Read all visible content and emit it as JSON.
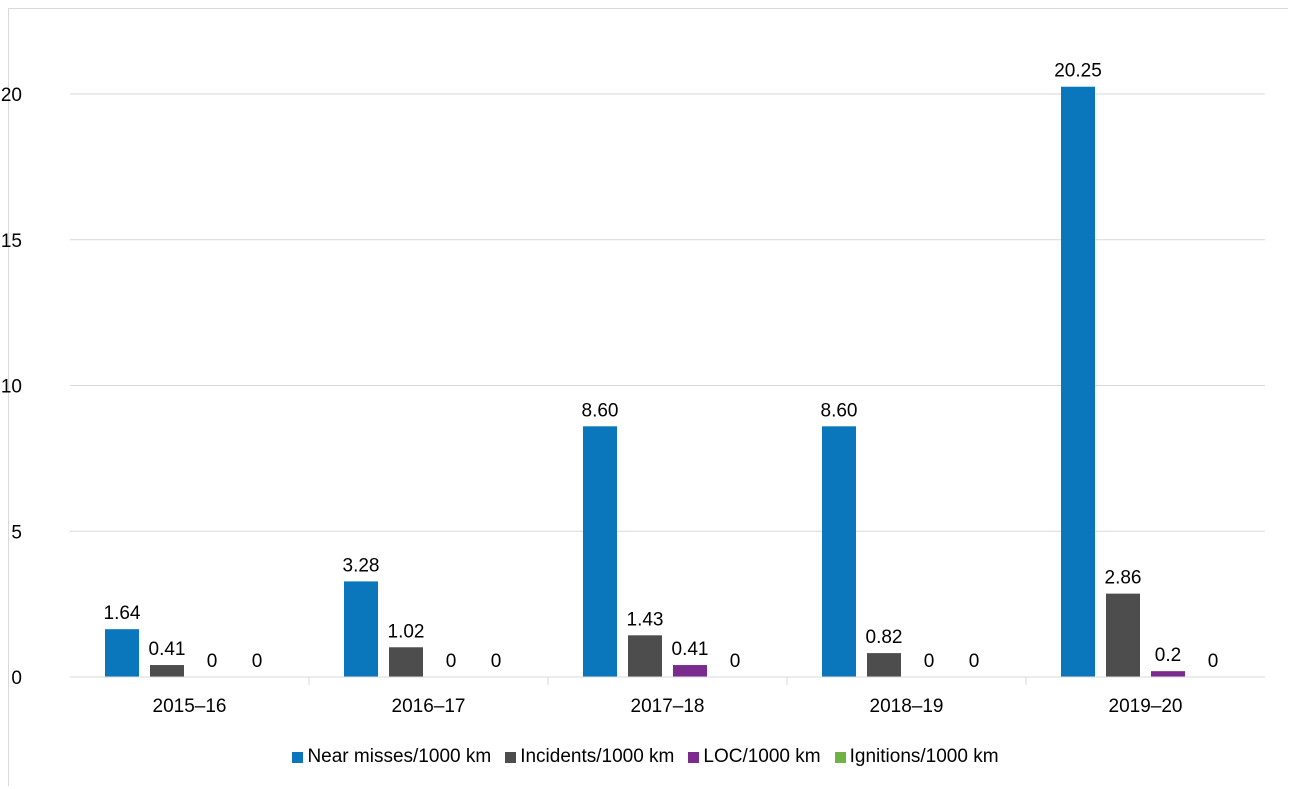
{
  "chart_data": {
    "type": "bar",
    "categories": [
      "2015–16",
      "2016–17",
      "2017–18",
      "2018–19",
      "2019–20"
    ],
    "series": [
      {
        "name": "Near misses/1000 km",
        "color": "#0a77bd",
        "values": [
          1.64,
          3.28,
          8.6,
          8.6,
          20.25
        ],
        "labels": [
          "1.64",
          "3.28",
          "8.60",
          "8.60",
          "20.25"
        ]
      },
      {
        "name": "Incidents/1000 km",
        "color": "#4d4d4d",
        "values": [
          0.41,
          1.02,
          1.43,
          0.82,
          2.86
        ],
        "labels": [
          "0.41",
          "1.02",
          "1.43",
          "0.82",
          "2.86"
        ]
      },
      {
        "name": "LOC/1000 km",
        "color": "#7b2a8e",
        "values": [
          0,
          0,
          0.41,
          0,
          0.2
        ],
        "labels": [
          "0",
          "0",
          "0.41",
          "0",
          "0.2"
        ]
      },
      {
        "name": "Ignitions/1000 km",
        "color": "#70b344",
        "values": [
          0,
          0,
          0,
          0,
          0
        ],
        "labels": [
          "0",
          "0",
          "0",
          "0",
          "0"
        ]
      }
    ],
    "ylim": [
      0,
      20
    ],
    "yticks": [
      0,
      5,
      10,
      15,
      20
    ],
    "grid": true,
    "legend_position": "bottom"
  }
}
